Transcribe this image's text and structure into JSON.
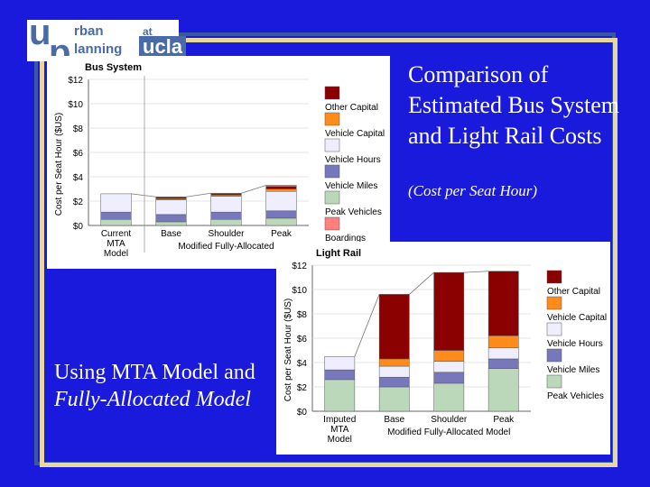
{
  "logo": {
    "u": "u",
    "p": "p",
    "urban": "rban",
    "planning": "lanning",
    "at": "at",
    "ucla": "ucla"
  },
  "slide": {
    "title": "Comparison of Estimated Bus System and Light Rail Costs",
    "subtitle": "(Cost per Seat Hour)",
    "body_line1": "Using MTA Model and",
    "body_line2": "Fully-Allocated Model"
  },
  "colors": {
    "background": "#1a1adc",
    "frame_outer": "#3a5a9a",
    "frame_inner": "#e8d8a0",
    "other_capital": "#8b0000",
    "vehicle_capital": "#ff8c1a",
    "vehicle_hours": "#eeeeff",
    "vehicle_miles": "#7777bb",
    "peak_vehicles": "#bbd8bb",
    "boardings": "#ff7f7f"
  },
  "chart_data": [
    {
      "type": "bar",
      "title": "Bus System",
      "ylabel": "Cost per Seat Hour ($US)",
      "ylim": [
        0,
        12
      ],
      "yticks": [
        "$0",
        "$2",
        "$4",
        "$6",
        "$8",
        "$10",
        "$12"
      ],
      "categories": [
        "Current MTA Model",
        "Base",
        "Shoulder",
        "Peak"
      ],
      "group_label": "Modified Fully-Allocated",
      "legend": [
        "Other Capital",
        "Vehicle Capital",
        "Vehicle Hours",
        "Vehicle Miles",
        "Peak Vehicles",
        "Boardings"
      ],
      "series": [
        {
          "name": "Peak Vehicles",
          "values": [
            0.5,
            0.3,
            0.5,
            0.6
          ]
        },
        {
          "name": "Vehicle Miles",
          "values": [
            0.6,
            0.6,
            0.6,
            0.6
          ]
        },
        {
          "name": "Vehicle Hours",
          "values": [
            1.5,
            1.2,
            1.3,
            1.6
          ]
        },
        {
          "name": "Vehicle Capital",
          "values": [
            0,
            0.1,
            0.1,
            0.2
          ]
        },
        {
          "name": "Other Capital",
          "values": [
            0,
            0.1,
            0.1,
            0.2
          ]
        },
        {
          "name": "Boardings",
          "values": [
            0,
            0.05,
            0.05,
            0.1
          ]
        }
      ]
    },
    {
      "type": "bar",
      "title": "Light Rail",
      "ylabel": "Cost per Seat Hour ($US)",
      "ylim": [
        0,
        12
      ],
      "yticks": [
        "$0",
        "$2",
        "$4",
        "$6",
        "$8",
        "$10",
        "$12"
      ],
      "categories": [
        "Imputed MTA Model",
        "Base",
        "Shoulder",
        "Peak"
      ],
      "group_label": "Modified Fully-Allocated Model",
      "legend": [
        "Other Capital",
        "Vehicle Capital",
        "Vehicle Hours",
        "Vehicle Miles",
        "Peak Vehicles"
      ],
      "series": [
        {
          "name": "Peak Vehicles",
          "values": [
            2.6,
            2.0,
            2.3,
            3.5
          ]
        },
        {
          "name": "Vehicle Miles",
          "values": [
            0.8,
            0.8,
            0.9,
            0.8
          ]
        },
        {
          "name": "Vehicle Hours",
          "values": [
            1.1,
            0.9,
            0.9,
            0.9
          ]
        },
        {
          "name": "Vehicle Capital",
          "values": [
            0,
            0.6,
            0.9,
            1.0
          ]
        },
        {
          "name": "Other Capital",
          "values": [
            0,
            5.3,
            6.4,
            5.3
          ]
        }
      ]
    }
  ]
}
